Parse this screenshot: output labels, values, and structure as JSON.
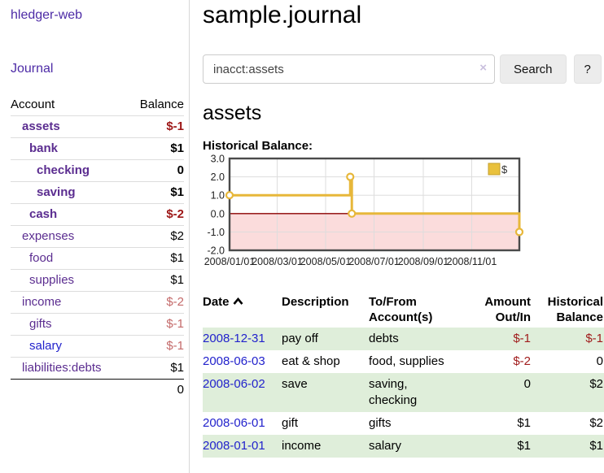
{
  "app": {
    "brand": "hledger-web",
    "nav_journal": "Journal"
  },
  "sidebar": {
    "header": {
      "account": "Account",
      "balance": "Balance"
    },
    "accounts": [
      {
        "name": "assets",
        "level": 1,
        "bold": true,
        "balance": "$-1",
        "tone": "neg-strong",
        "link": "purple"
      },
      {
        "name": "bank",
        "level": 2,
        "bold": true,
        "balance": "$1",
        "tone": "normal",
        "link": "purple"
      },
      {
        "name": "checking",
        "level": 3,
        "bold": true,
        "balance": "0",
        "tone": "normal",
        "link": "purple"
      },
      {
        "name": "saving",
        "level": 3,
        "bold": true,
        "balance": "$1",
        "tone": "normal",
        "link": "purple"
      },
      {
        "name": "cash",
        "level": 2,
        "bold": true,
        "balance": "$-2",
        "tone": "neg-strong",
        "link": "purple"
      },
      {
        "name": "expenses",
        "level": 1,
        "bold": false,
        "balance": "$2",
        "tone": "normal",
        "link": "purple"
      },
      {
        "name": "food",
        "level": 2,
        "bold": false,
        "balance": "$1",
        "tone": "normal",
        "link": "purple"
      },
      {
        "name": "supplies",
        "level": 2,
        "bold": false,
        "balance": "$1",
        "tone": "normal",
        "link": "purple"
      },
      {
        "name": "income",
        "level": 1,
        "bold": false,
        "balance": "$-2",
        "tone": "neg-soft",
        "link": "purple"
      },
      {
        "name": "gifts",
        "level": 2,
        "bold": false,
        "balance": "$-1",
        "tone": "neg-soft",
        "link": "purple"
      },
      {
        "name": "salary",
        "level": 2,
        "bold": false,
        "balance": "$-1",
        "tone": "neg-soft",
        "link": "blue"
      },
      {
        "name": "liabilities:debts",
        "level": 1,
        "bold": false,
        "balance": "$1",
        "tone": "normal",
        "link": "purple"
      }
    ],
    "total": "0"
  },
  "header": {
    "title": "sample.journal"
  },
  "search": {
    "value": "inacct:assets",
    "clear_icon": "×",
    "button_label": "Search",
    "help_label": "?"
  },
  "account_page": {
    "heading": "assets",
    "chart_label": "Historical Balance:"
  },
  "chart_data": {
    "type": "line",
    "title": "Historical Balance of assets",
    "legend": "$",
    "legend_position": "top-right",
    "ylim": [
      -2,
      3
    ],
    "y_ticks": [
      3.0,
      2.0,
      1.0,
      0.0,
      -1.0,
      -2.0
    ],
    "x_range": [
      "2008-01-01",
      "2008-12-31"
    ],
    "x_ticks": [
      {
        "date": "2008-01-01",
        "label": "2008/01/01"
      },
      {
        "date": "2008-03-01",
        "label": "2008/03/01"
      },
      {
        "date": "2008-05-01",
        "label": "2008/05/01"
      },
      {
        "date": "2008-07-01",
        "label": "2008/07/01"
      },
      {
        "date": "2008-09-01",
        "label": "2008/09/01"
      },
      {
        "date": "2008-11-01",
        "label": "2008/11/01"
      }
    ],
    "grid": true,
    "negative_region_shaded": true,
    "series": [
      {
        "name": "$",
        "step": "after",
        "points": [
          {
            "date": "2008-01-01",
            "value": 1
          },
          {
            "date": "2008-06-01",
            "value": 2
          },
          {
            "date": "2008-06-03",
            "value": 0
          },
          {
            "date": "2008-12-31",
            "value": -1
          }
        ]
      }
    ]
  },
  "transactions": {
    "columns": {
      "date": "Date",
      "description": "Description",
      "accounts": "To/From Account(s)",
      "amount": "Amount Out/In",
      "balance": "Historical Balance"
    },
    "rows": [
      {
        "date": "2008-12-31",
        "description": "pay off",
        "accounts": "debts",
        "amount": "$-1",
        "amount_neg": true,
        "balance": "$-1",
        "balance_neg": true,
        "shaded": true
      },
      {
        "date": "2008-06-03",
        "description": "eat & shop",
        "accounts": "food, supplies",
        "amount": "$-2",
        "amount_neg": true,
        "balance": "0",
        "balance_neg": false,
        "shaded": false
      },
      {
        "date": "2008-06-02",
        "description": "save",
        "accounts": "saving, checking",
        "amount": "0",
        "amount_neg": false,
        "balance": "$2",
        "balance_neg": false,
        "shaded": true
      },
      {
        "date": "2008-06-01",
        "description": "gift",
        "accounts": "gifts",
        "amount": "$1",
        "amount_neg": false,
        "balance": "$2",
        "balance_neg": false,
        "shaded": false
      },
      {
        "date": "2008-01-01",
        "description": "income",
        "accounts": "salary",
        "amount": "$1",
        "amount_neg": false,
        "balance": "$1",
        "balance_neg": false,
        "shaded": true
      }
    ]
  },
  "colors": {
    "purple_link": "#5b2d90",
    "blue_link": "#2222cc",
    "brand_purple": "#4d2ba6",
    "negative_strong": "#9d1616",
    "negative_soft": "#c46a6a",
    "table_negative": "#a01c1c",
    "row_green": "#dfeeda",
    "chart_line_gold": "#e7b73a",
    "chart_negative_bg": "#fbdcdc",
    "chart_zero_line": "#8b0000",
    "chart_grid": "#dddddd",
    "chart_border": "#4a4a4a"
  }
}
